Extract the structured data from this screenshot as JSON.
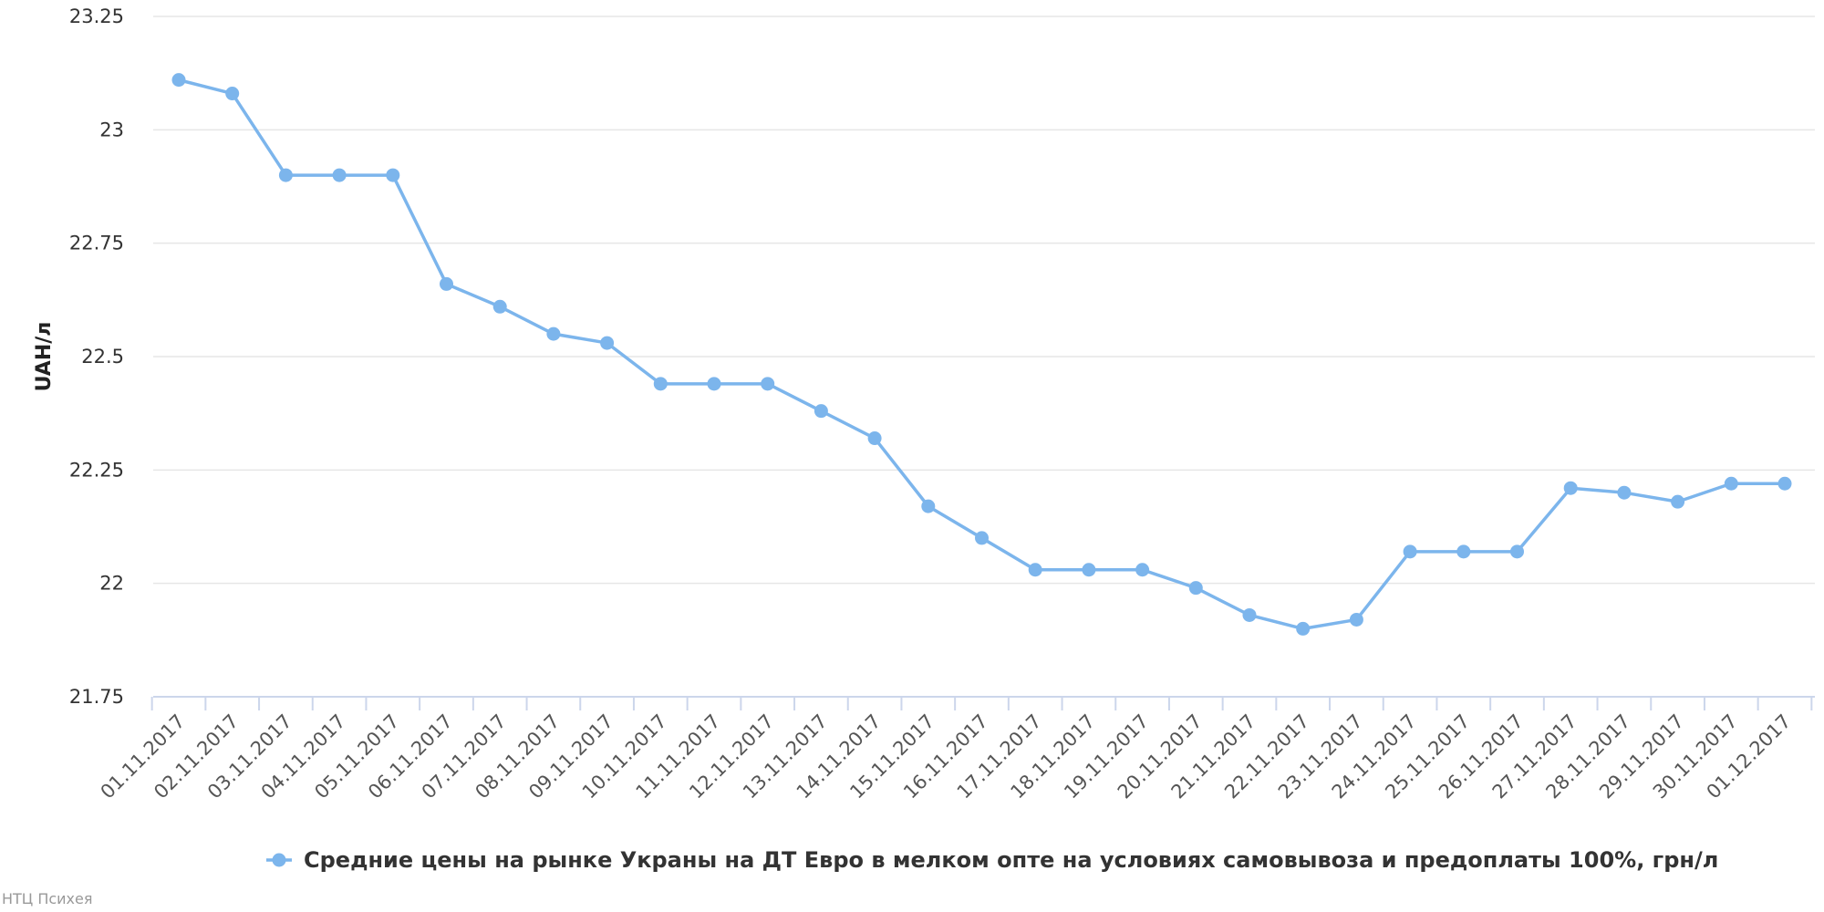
{
  "chart_data": {
    "type": "line",
    "ylabel": "UAH/л",
    "xlabel": "",
    "ylim": [
      21.75,
      23.25
    ],
    "y_ticks": [
      "23.25",
      "23",
      "22.75",
      "22.5",
      "22.25",
      "22",
      "21.75"
    ],
    "grid": true,
    "legend_position": "bottom-center",
    "color": "#7cb5ec",
    "categories": [
      "01.11.2017",
      "02.11.2017",
      "03.11.2017",
      "04.11.2017",
      "05.11.2017",
      "06.11.2017",
      "07.11.2017",
      "08.11.2017",
      "09.11.2017",
      "10.11.2017",
      "11.11.2017",
      "12.11.2017",
      "13.11.2017",
      "14.11.2017",
      "15.11.2017",
      "16.11.2017",
      "17.11.2017",
      "18.11.2017",
      "19.11.2017",
      "20.11.2017",
      "21.11.2017",
      "22.11.2017",
      "23.11.2017",
      "24.11.2017",
      "25.11.2017",
      "26.11.2017",
      "27.11.2017",
      "28.11.2017",
      "29.11.2017",
      "30.11.2017",
      "01.12.2017"
    ],
    "series": [
      {
        "name": "Средние цены на рынке Украны на ДТ Евро в мелком опте на условиях самовывоза и предоплаты 100%, грн/л",
        "values": [
          23.11,
          23.08,
          22.9,
          22.9,
          22.9,
          22.66,
          22.61,
          22.55,
          22.53,
          22.44,
          22.44,
          22.44,
          22.38,
          22.32,
          22.17,
          22.1,
          22.03,
          22.03,
          22.03,
          21.99,
          21.93,
          21.9,
          21.92,
          22.07,
          22.07,
          22.07,
          22.21,
          22.2,
          22.18,
          22.22,
          22.22
        ]
      }
    ]
  },
  "credit": "НТЦ Психея"
}
